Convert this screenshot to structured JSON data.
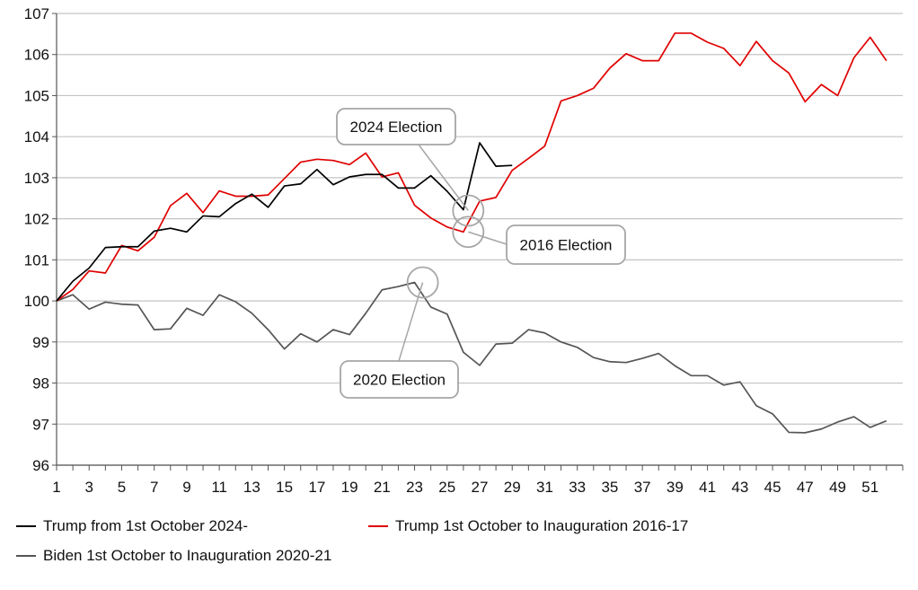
{
  "chart_data": {
    "type": "line",
    "title": "",
    "xlabel": "",
    "ylabel": "",
    "xlim": [
      1,
      53
    ],
    "ylim": [
      96,
      107
    ],
    "grid": "horizontal",
    "legend_placement": "bottom",
    "x_ticks": [
      1,
      3,
      5,
      7,
      9,
      11,
      13,
      15,
      17,
      19,
      21,
      23,
      25,
      27,
      29,
      31,
      33,
      35,
      37,
      39,
      41,
      43,
      45,
      47,
      49,
      51
    ],
    "y_ticks": [
      96,
      97,
      98,
      99,
      100,
      101,
      102,
      103,
      104,
      105,
      106,
      107
    ],
    "series": [
      {
        "name": "Biden 1st October to Inauguration 2020-21",
        "color": "#555555",
        "values": [
          100.0,
          100.15,
          99.8,
          99.97,
          99.92,
          99.9,
          99.3,
          99.32,
          99.82,
          99.65,
          100.15,
          99.98,
          99.7,
          99.3,
          98.83,
          99.2,
          99.0,
          99.3,
          99.18,
          99.7,
          100.27,
          100.35,
          100.45,
          99.85,
          99.68,
          98.75,
          98.43,
          98.95,
          98.97,
          99.3,
          99.22,
          99.0,
          98.87,
          98.62,
          98.52,
          98.5,
          98.6,
          98.72,
          98.42,
          98.18,
          98.18,
          97.95,
          98.03,
          97.45,
          97.25,
          96.8,
          96.79,
          96.88,
          97.05,
          97.18,
          96.92,
          97.08
        ]
      },
      {
        "name": "Trump 1st October to Inauguration 2016-17",
        "color": "#e00000",
        "values": [
          100.0,
          100.28,
          100.73,
          100.68,
          101.35,
          101.22,
          101.55,
          102.32,
          102.62,
          102.15,
          102.68,
          102.55,
          102.55,
          102.58,
          102.98,
          103.38,
          103.45,
          103.42,
          103.32,
          103.6,
          103.02,
          103.12,
          102.33,
          102.02,
          101.8,
          101.68,
          102.43,
          102.52,
          103.18,
          103.47,
          103.77,
          104.87,
          105.0,
          105.18,
          105.67,
          106.02,
          105.85,
          105.85,
          106.52,
          106.52,
          106.3,
          106.15,
          105.73,
          106.32,
          105.85,
          105.55,
          104.85,
          105.27,
          105.0,
          105.92,
          106.42,
          105.85
        ]
      },
      {
        "name": "Trump from 1st October 2024-",
        "color": "#000000",
        "values": [
          100.0,
          100.48,
          100.8,
          101.3,
          101.32,
          101.32,
          101.7,
          101.77,
          101.68,
          102.07,
          102.05,
          102.37,
          102.6,
          102.28,
          102.8,
          102.85,
          103.2,
          102.83,
          103.02,
          103.08,
          103.08,
          102.75,
          102.75,
          103.05,
          102.67,
          102.22,
          103.85,
          103.28,
          103.3
        ]
      }
    ],
    "annotations": [
      {
        "text": "2024 Election",
        "x": 26.3,
        "y": 102.2
      },
      {
        "text": "2016 Election",
        "x": 26.3,
        "y": 101.68
      },
      {
        "text": "2020 Election",
        "x": 23.5,
        "y": 100.45
      }
    ]
  },
  "legend_items": [
    {
      "label": "Trump from 1st October 2024-",
      "color": "#000000"
    },
    {
      "label": "Trump 1st October to Inauguration 2016-17",
      "color": "#e00000"
    },
    {
      "label": "Biden 1st October to Inauguration 2020-21",
      "color": "#555555"
    }
  ]
}
